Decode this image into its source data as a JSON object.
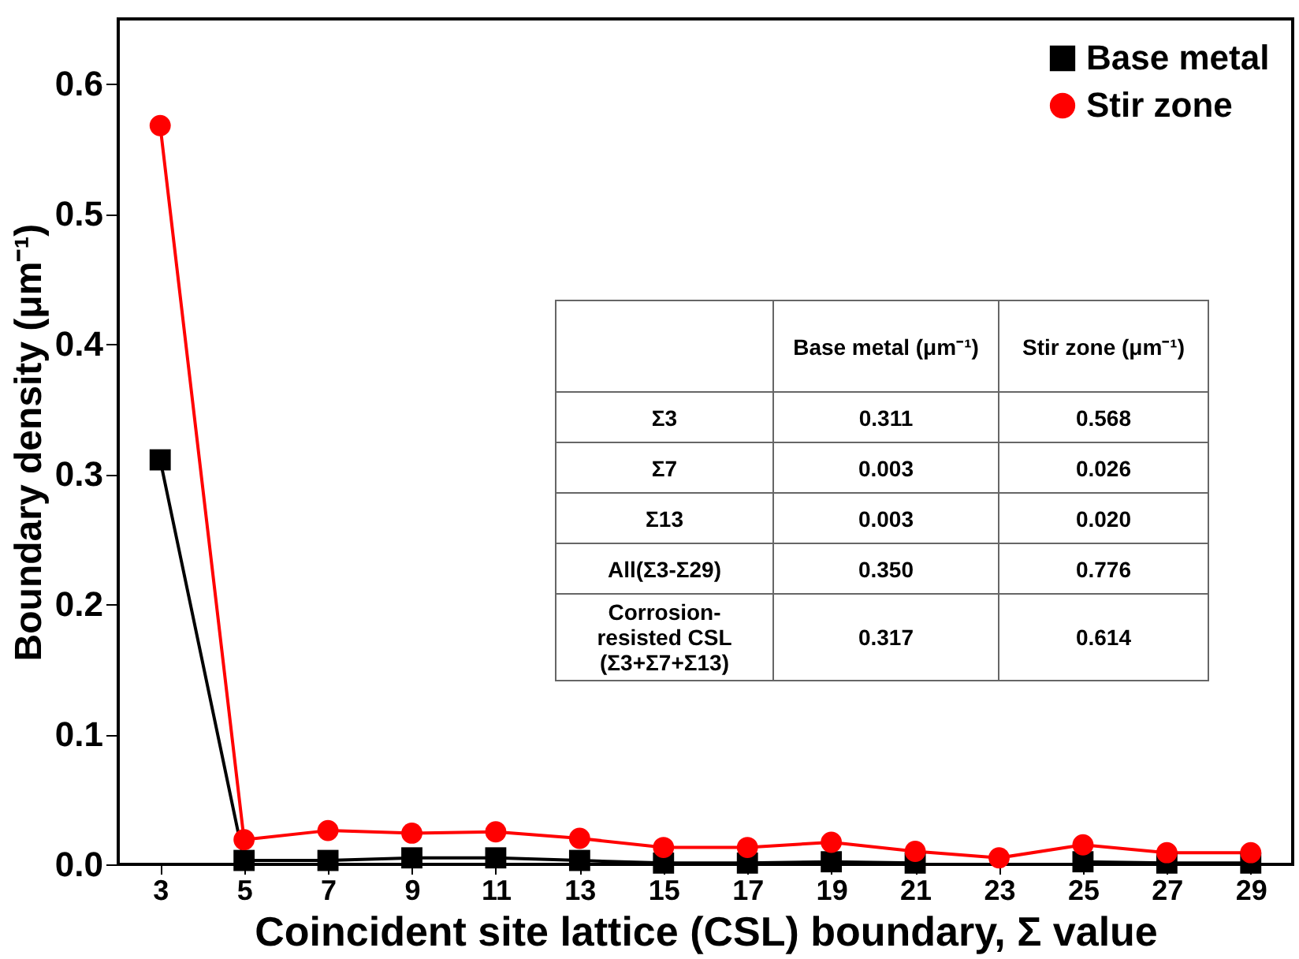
{
  "chart_data": {
    "type": "line",
    "xlabel": "Coincident site lattice (CSL) boundary, Σ value",
    "ylabel": "Boundary density (μm⁻¹)",
    "categories": [
      "3",
      "5",
      "7",
      "9",
      "11",
      "13",
      "15",
      "17",
      "19",
      "21",
      "23",
      "25",
      "27",
      "29"
    ],
    "series": [
      {
        "name": "Base metal",
        "color": "#000000",
        "marker": "square",
        "values": [
          0.311,
          0.003,
          0.003,
          0.005,
          0.005,
          0.003,
          0.001,
          0.001,
          0.002,
          0.001,
          null,
          0.002,
          0.001,
          0.001
        ]
      },
      {
        "name": "Stir zone",
        "color": "#ff0000",
        "marker": "circle",
        "values": [
          0.568,
          0.019,
          0.026,
          0.024,
          0.025,
          0.02,
          0.013,
          0.013,
          0.017,
          0.01,
          0.005,
          0.015,
          0.009,
          0.009
        ]
      }
    ],
    "ylim": [
      0,
      0.65
    ],
    "yticks": [
      {
        "value": 0,
        "label": "0.0"
      },
      0.1,
      0.2,
      0.3,
      0.4,
      0.5,
      0.6
    ],
    "legend": "top right",
    "grid": false,
    "annotations": [
      "Base metal (μm⁻¹)",
      "Stir zone (μm⁻¹)",
      "Σ3",
      "0.311",
      "0.568",
      "Σ7",
      "0.003",
      "0.026",
      "Σ13",
      "0.003",
      "0.020",
      "All(Σ3-Σ29)",
      "0.350",
      "0.776",
      "Corrosion-resisted CSL (Σ3+Σ7+Σ13)",
      "0.317",
      "0.614"
    ]
  }
}
